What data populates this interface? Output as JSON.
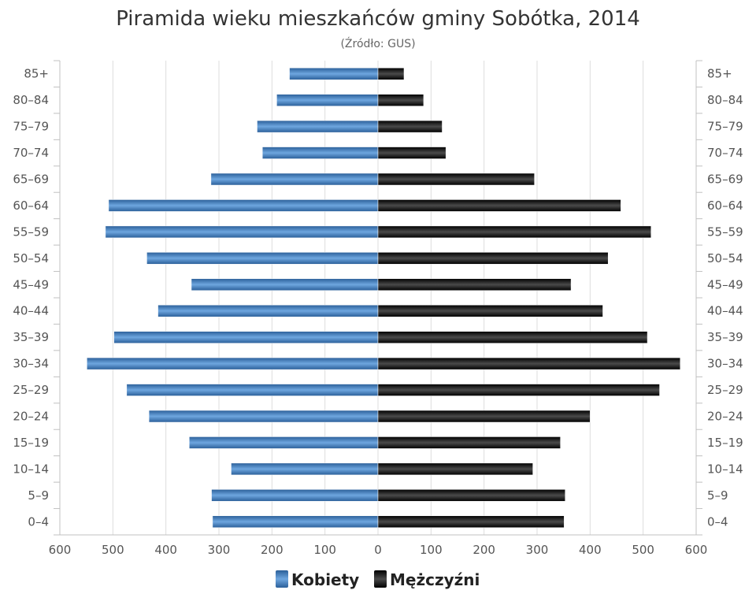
{
  "chart_data": {
    "type": "bar",
    "orientation": "horizontal",
    "layout": "population-pyramid",
    "title": "Piramida wieku mieszkańców gminy Sobótka, 2014",
    "subtitle": "(Źródło: GUS)",
    "categories": [
      "85+",
      "80–84",
      "75–79",
      "70–74",
      "65–69",
      "60–64",
      "55–59",
      "50–54",
      "45–49",
      "40–44",
      "35–39",
      "30–34",
      "25–29",
      "20–24",
      "15–19",
      "10–14",
      "5–9",
      "0–4"
    ],
    "series": [
      {
        "name": "Kobiety",
        "side": "left",
        "color": "#3a7bbf",
        "values": [
          167,
          191,
          228,
          218,
          315,
          508,
          514,
          436,
          352,
          415,
          498,
          549,
          474,
          432,
          356,
          277,
          314,
          312
        ]
      },
      {
        "name": "Mężczyźni",
        "side": "right",
        "color": "#111111",
        "values": [
          49,
          86,
          121,
          128,
          295,
          458,
          515,
          434,
          364,
          424,
          508,
          570,
          531,
          400,
          344,
          292,
          353,
          351
        ]
      }
    ],
    "xlim": [
      -600,
      600
    ],
    "x_ticks": [
      600,
      500,
      400,
      300,
      200,
      100,
      0,
      100,
      200,
      300,
      400,
      500,
      600
    ],
    "grid": true,
    "legend_position": "bottom"
  }
}
